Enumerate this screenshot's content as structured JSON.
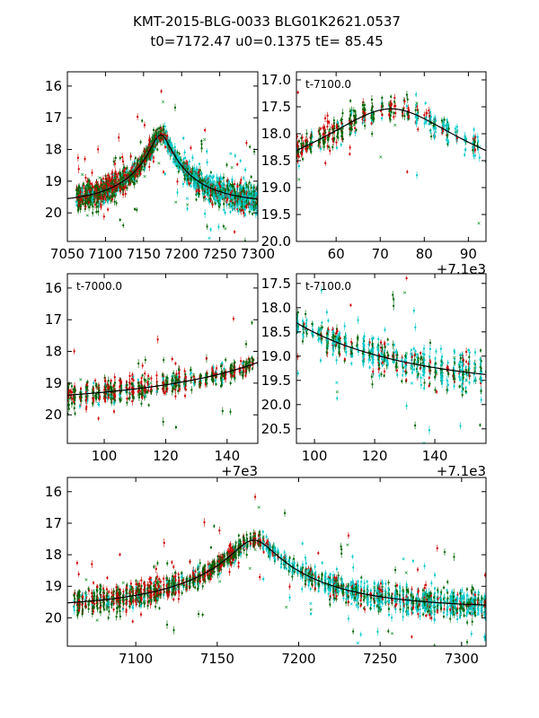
{
  "title": {
    "line1": "KMT-2015-BLG-0033 BLG01K2621.0537",
    "line2": "t0=7172.47 u0=0.1375 tE=  85.45"
  },
  "colors": {
    "kmt_ctio": "#cc0000",
    "kmt_saao": "#006400",
    "kmt_sso": "#00c8c8",
    "x_marks": "#2a9d3c",
    "model": "#000000"
  },
  "model_params": {
    "t0": 7172.47,
    "u0": 0.1375,
    "tE": 85.45,
    "base_mag": 19.7
  },
  "chart_data": [
    {
      "panel": "top-left",
      "type": "scatter",
      "x_range": [
        7050,
        7300
      ],
      "y_range": [
        20.9,
        15.55
      ],
      "y_inverted": true,
      "x_ticks": [
        7050,
        7100,
        7150,
        7200,
        7250,
        7300
      ],
      "x_tick_labels": [
        "7050",
        "7100",
        "7150",
        "7200",
        "7250",
        "7300"
      ],
      "y_ticks": [
        16,
        17,
        18,
        19,
        20
      ],
      "y_tick_labels": [
        "16",
        "17",
        "18",
        "19",
        "20"
      ],
      "offset_label": "",
      "annotation": ""
    },
    {
      "panel": "top-right",
      "type": "scatter",
      "x_range": [
        51,
        94
      ],
      "x_offset": 7100,
      "y_range": [
        20.0,
        16.85
      ],
      "y_inverted": true,
      "x_ticks": [
        60,
        70,
        80,
        90
      ],
      "x_tick_labels": [
        "60",
        "70",
        "80",
        "90"
      ],
      "y_ticks": [
        17.0,
        17.5,
        18.0,
        18.5,
        19.0,
        19.5,
        20.0
      ],
      "y_tick_labels": [
        "17.0",
        "17.5",
        "18.0",
        "18.5",
        "19.0",
        "19.5",
        "20.0"
      ],
      "offset_label": "+7.1e3",
      "annotation": "t-7100.0"
    },
    {
      "panel": "middle-left",
      "type": "scatter",
      "x_range": [
        88,
        150
      ],
      "x_offset": 7000,
      "y_range": [
        20.9,
        15.55
      ],
      "y_inverted": true,
      "x_ticks": [
        100,
        120,
        140
      ],
      "x_tick_labels": [
        "100",
        "120",
        "140"
      ],
      "y_ticks": [
        16,
        17,
        18,
        19,
        20
      ],
      "y_tick_labels": [
        "16",
        "17",
        "18",
        "19",
        "20"
      ],
      "offset_label": "+7e3",
      "annotation": "t-7000.0"
    },
    {
      "panel": "middle-right",
      "type": "scatter",
      "x_range": [
        94,
        157
      ],
      "x_offset": 7100,
      "y_range": [
        20.8,
        17.3
      ],
      "y_inverted": true,
      "x_ticks": [
        100,
        120,
        140
      ],
      "x_tick_labels": [
        "100",
        "120",
        "140"
      ],
      "y_ticks": [
        17.5,
        18.0,
        18.5,
        19.0,
        19.5,
        20.0,
        20.5
      ],
      "y_tick_labels": [
        "17.5",
        "18.0",
        "18.5",
        "19.0",
        "19.5",
        "20.0",
        "20.5"
      ],
      "offset_label": "+7.1e3",
      "annotation": "t-7100.0"
    },
    {
      "panel": "bottom",
      "type": "scatter",
      "x_range": [
        7058,
        7315
      ],
      "y_range": [
        20.9,
        15.55
      ],
      "y_inverted": true,
      "x_ticks": [
        7100,
        7150,
        7200,
        7250,
        7300
      ],
      "x_tick_labels": [
        "7100",
        "7150",
        "7200",
        "7250",
        "7300"
      ],
      "y_ticks": [
        16,
        17,
        18,
        19,
        20
      ],
      "y_tick_labels": [
        "16",
        "17",
        "18",
        "19",
        "20"
      ],
      "offset_label": "",
      "annotation": ""
    }
  ]
}
